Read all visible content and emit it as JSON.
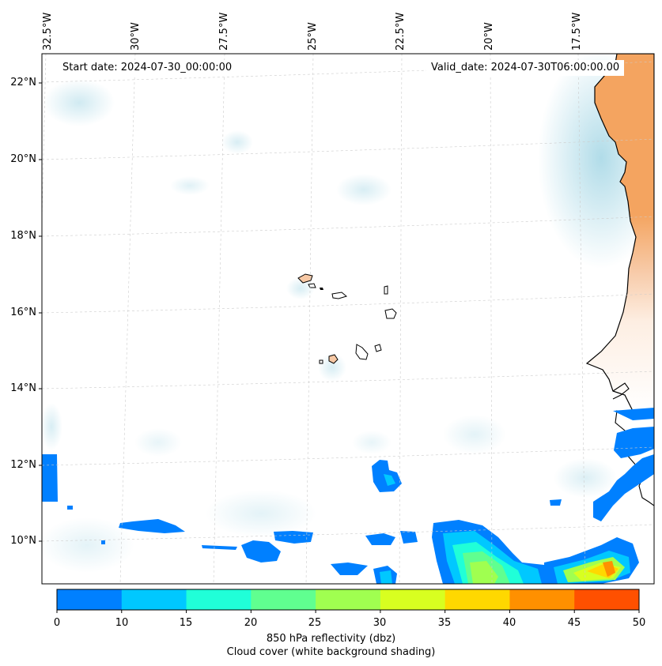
{
  "map": {
    "start_date": "Start date: 2024-07-30_00:00:00",
    "valid_date": "Valid_date: 2024-07-30T06:00:00.00",
    "lon_labels": [
      "32.5°W",
      "30°W",
      "27.5°W",
      "25°W",
      "22.5°W",
      "20°W",
      "17.5°W"
    ],
    "lat_labels": [
      "22°N",
      "20°N",
      "18°N",
      "16°N",
      "14°N",
      "12°N",
      "10°N"
    ],
    "land_color": "#f4a460",
    "coast_color": "#000000",
    "cloud_color": "#a8d8e6"
  },
  "colorbar": {
    "ticks": [
      "0",
      "10",
      "15",
      "20",
      "25",
      "30",
      "35",
      "40",
      "45",
      "50"
    ],
    "colors": [
      "#0080ff",
      "#00c8ff",
      "#20ffd8",
      "#60ff90",
      "#a0ff50",
      "#d8ff20",
      "#ffd800",
      "#ff9000",
      "#ff5000"
    ],
    "label": "850 hPa reflectivity (dbz)",
    "sublabel": "Cloud cover (white background shading)"
  }
}
